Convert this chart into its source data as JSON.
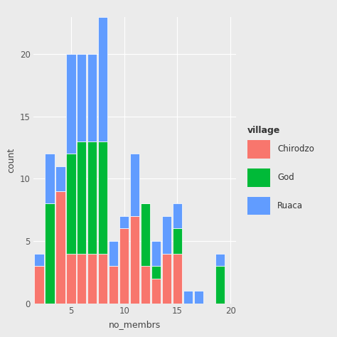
{
  "title": "",
  "xlabel": "no_membrs",
  "ylabel": "count",
  "legend_title": "village",
  "legend_labels": [
    "Chirodzo",
    "God",
    "Ruaca"
  ],
  "colors": {
    "Chirodzo": "#F8766D",
    "God": "#00BA38",
    "Ruaca": "#619CFF"
  },
  "bins": [
    2,
    3,
    4,
    5,
    6,
    7,
    8,
    9,
    10,
    11,
    12,
    13,
    14,
    15,
    16,
    17,
    18,
    19,
    20
  ],
  "chirodzo": [
    3,
    0,
    9,
    4,
    4,
    4,
    4,
    3,
    6,
    7,
    3,
    2,
    4,
    4,
    0,
    0,
    0,
    0,
    0
  ],
  "god": [
    0,
    8,
    0,
    8,
    9,
    9,
    9,
    0,
    0,
    0,
    5,
    1,
    0,
    2,
    0,
    0,
    0,
    3,
    0
  ],
  "ruaca": [
    1,
    4,
    2,
    8,
    7,
    7,
    10,
    2,
    1,
    5,
    0,
    2,
    3,
    2,
    1,
    1,
    0,
    1,
    0
  ],
  "xlim": [
    1.5,
    20.5
  ],
  "ylim": [
    0,
    23
  ],
  "yticks": [
    0,
    5,
    10,
    15,
    20
  ],
  "xticks": [
    5,
    10,
    15,
    20
  ],
  "bg_color": "#EBEBEB",
  "grid_color": "white",
  "binwidth": 1
}
